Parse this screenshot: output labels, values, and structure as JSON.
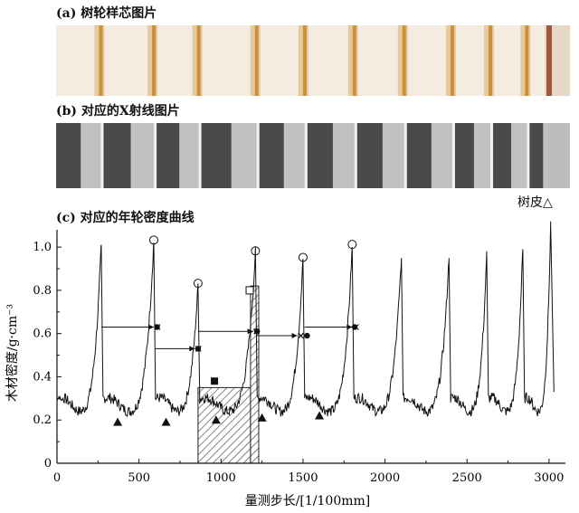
{
  "panels": {
    "a_title": "(a) 树轮样芯图片",
    "b_title": "(b) 对应的X射线图片",
    "c_title": "(c) 对应的年轮密度曲线",
    "bark_label": "树皮△"
  },
  "chart_data": {
    "type": "line",
    "xlabel": "量测步长/[1/100mm]",
    "ylabel": "木材密度/g·cm⁻³",
    "xlim": [
      0,
      3100
    ],
    "ylim": [
      0,
      1.08
    ],
    "xticks": [
      0,
      500,
      1000,
      1500,
      2000,
      2500,
      3000
    ],
    "yticks": [
      0,
      0.2,
      0.4,
      0.6,
      0.8,
      1.0
    ],
    "ytick_labels": [
      "0",
      "0.2",
      "0.4",
      "0.6",
      "0.8",
      "1.0"
    ],
    "rings": [
      {
        "start": 0,
        "peak": 270,
        "peak_value": 1.01,
        "end": 280
      },
      {
        "start": 280,
        "peak": 590,
        "peak_value": 1.02,
        "end": 600
      },
      {
        "start": 600,
        "peak": 860,
        "peak_value": 0.82,
        "end": 870
      },
      {
        "start": 870,
        "peak": 1210,
        "peak_value": 0.97,
        "end": 1220
      },
      {
        "start": 1220,
        "peak": 1500,
        "peak_value": 0.94,
        "end": 1510
      },
      {
        "start": 1510,
        "peak": 1800,
        "peak_value": 1.0,
        "end": 1810
      },
      {
        "start": 1810,
        "peak": 2100,
        "peak_value": 0.95,
        "end": 2110
      },
      {
        "start": 2110,
        "peak": 2390,
        "peak_value": 0.95,
        "end": 2400
      },
      {
        "start": 2400,
        "peak": 2620,
        "peak_value": 0.96,
        "end": 2630
      },
      {
        "start": 2630,
        "peak": 2840,
        "peak_value": 0.99,
        "end": 2850
      },
      {
        "start": 2850,
        "peak": 3010,
        "peak_value": 1.1,
        "end": 3030
      }
    ],
    "base_value": 0.3,
    "circles": [
      [
        590,
        1.02
      ],
      [
        860,
        0.82
      ],
      [
        1210,
        0.97
      ],
      [
        1500,
        0.94
      ],
      [
        1800,
        1.0
      ]
    ],
    "triangles": [
      [
        370,
        0.19
      ],
      [
        665,
        0.19
      ],
      [
        970,
        0.2
      ],
      [
        1250,
        0.21
      ],
      [
        1600,
        0.22
      ]
    ],
    "filled_square": [
      960,
      0.38
    ],
    "open_square": [
      1175,
      0.8
    ],
    "arrows": [
      {
        "x0": 270,
        "x1": 590,
        "y": 0.63
      },
      {
        "x0": 600,
        "x1": 840,
        "y": 0.53
      },
      {
        "x0": 860,
        "x1": 1195,
        "y": 0.61
      },
      {
        "x0": 1220,
        "x1": 1465,
        "y": 0.59
      },
      {
        "x0": 1510,
        "x1": 1800,
        "y": 0.63
      }
    ],
    "dots": [
      [
        610,
        0.63
      ],
      [
        860,
        0.53
      ],
      [
        1220,
        0.61
      ],
      [
        1525,
        0.59
      ],
      [
        1815,
        0.63
      ]
    ],
    "hatched_low": {
      "x0": 860,
      "x1": 1180,
      "y0": 0,
      "y1": 0.35
    },
    "hatched_high": {
      "x0": 1180,
      "x1": 1230,
      "y0": 0,
      "y1": 0.82
    }
  },
  "colors": {
    "core_bg": "#f4ece0",
    "core_ring": "#c98a2a",
    "xray_bg": "#4a4a4a",
    "xray_band": "#d6d6d6",
    "line": "#111111"
  }
}
